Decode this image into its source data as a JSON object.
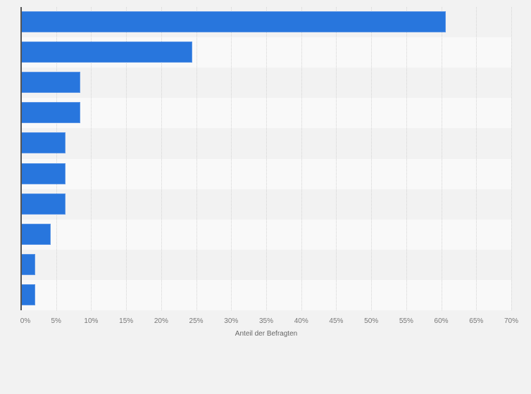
{
  "chart_data": {
    "type": "bar",
    "orientation": "horizontal",
    "title": "",
    "xlabel": "Anteil der Befragten",
    "ylabel": "",
    "categories": [
      "",
      "",
      "",
      "",
      "",
      "",
      "",
      "",
      "",
      ""
    ],
    "values": [
      60.6,
      24.4,
      8.4,
      8.4,
      6.3,
      6.3,
      6.3,
      4.2,
      2.0,
      2.0
    ],
    "xlim": [
      0,
      70
    ],
    "x_ticks": [
      "0%",
      "5%",
      "10%",
      "15%",
      "20%",
      "25%",
      "30%",
      "35%",
      "40%",
      "45%",
      "50%",
      "55%",
      "60%",
      "65%",
      "70%"
    ],
    "grid": true,
    "legend": null,
    "bar_color": "#2876dd"
  },
  "axis": {
    "xlabel": "Anteil der Befragten",
    "ticks": [
      "0%",
      "5%",
      "10%",
      "15%",
      "20%",
      "25%",
      "30%",
      "35%",
      "40%",
      "45%",
      "50%",
      "55%",
      "60%",
      "65%",
      "70%"
    ]
  },
  "colors": {
    "bar": "#2876dd",
    "background": "#f2f2f2",
    "band_light": "#f9f9f9",
    "band_dark": "#f2f2f2"
  }
}
